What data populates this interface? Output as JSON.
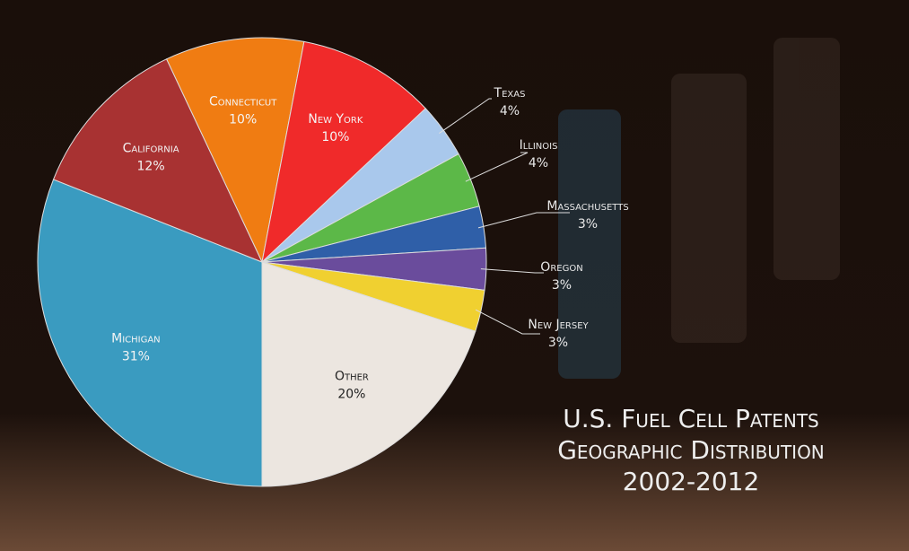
{
  "chart_data": {
    "type": "pie",
    "title_lines": [
      "U.S. Fuel Cell Patents",
      "Geographic Distribution",
      "2002-2012"
    ],
    "categories": [
      "Connecticut",
      "New York",
      "Texas",
      "Illinois",
      "Massachusetts",
      "Oregon",
      "New Jersey",
      "Other",
      "Michigan",
      "California"
    ],
    "values": [
      10,
      10,
      4,
      4,
      3,
      3,
      3,
      20,
      31,
      12
    ],
    "value_labels": [
      "10%",
      "10%",
      "4%",
      "4%",
      "3%",
      "3%",
      "3%",
      "20%",
      "31%",
      "12%"
    ],
    "colors": [
      "#f07c12",
      "#f02a2a",
      "#a9c8ec",
      "#5cb848",
      "#2f5fa8",
      "#6a4c9c",
      "#f0d030",
      "#ece6e0",
      "#3a9bc0",
      "#a83232"
    ]
  }
}
